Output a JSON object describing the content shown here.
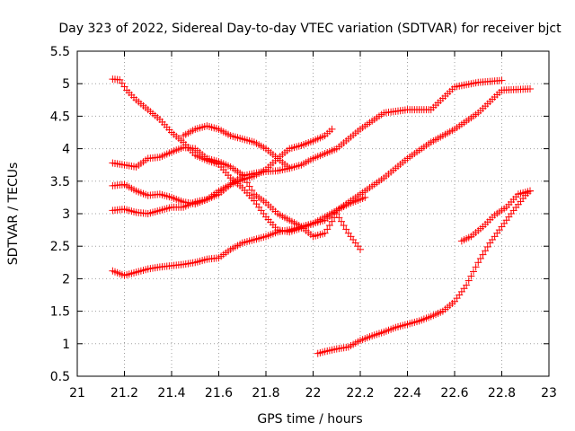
{
  "chart_data": {
    "type": "scatter",
    "title": "Day 323 of 2022, Sidereal Day-to-day VTEC variation (SDTVAR) for receiver bjct",
    "xlabel": "GPS time / hours",
    "ylabel": "SDTVAR / TECUs",
    "xlim": [
      21,
      23
    ],
    "ylim": [
      0.5,
      5.5
    ],
    "xticks": [
      "21",
      "21.2",
      "21.4",
      "21.6",
      "21.8",
      "22",
      "22.2",
      "22.4",
      "22.6",
      "22.8",
      "23"
    ],
    "yticks": [
      "0.5",
      "1",
      "1.5",
      "2",
      "2.5",
      "3",
      "3.5",
      "4",
      "4.5",
      "5",
      "5.5"
    ],
    "grid": true,
    "marker": "+",
    "color": "#ff0000",
    "series": [
      {
        "x": [
          21.15,
          21.18,
          21.21,
          21.25,
          21.3,
          21.35,
          21.4,
          21.45,
          21.5,
          21.55,
          21.6,
          21.65,
          21.7,
          21.75,
          21.8,
          21.85,
          21.9,
          21.95,
          22.0,
          22.05,
          22.1,
          22.15,
          22.2,
          22.22
        ],
        "y": [
          5.07,
          5.06,
          4.9,
          4.75,
          4.6,
          4.45,
          4.25,
          4.1,
          3.9,
          3.82,
          3.76,
          3.55,
          3.4,
          3.2,
          2.95,
          2.75,
          2.72,
          2.78,
          2.85,
          2.9,
          3.05,
          3.15,
          3.22,
          3.25
        ]
      },
      {
        "x": [
          21.15,
          21.2,
          21.25,
          21.3,
          21.35,
          21.4,
          21.45,
          21.5,
          21.55,
          21.6,
          21.65,
          21.7,
          21.75,
          21.8,
          21.85,
          21.9,
          21.95,
          22.0,
          22.05,
          22.1,
          22.15,
          22.2
        ],
        "y": [
          3.78,
          3.75,
          3.72,
          3.85,
          3.87,
          3.95,
          4.02,
          4.0,
          3.85,
          3.8,
          3.72,
          3.6,
          3.3,
          3.17,
          3.0,
          2.9,
          2.8,
          2.65,
          2.7,
          3.0,
          2.7,
          2.45
        ]
      },
      {
        "x": [
          21.15,
          21.2,
          21.25,
          21.3,
          21.35,
          21.4,
          21.45,
          21.5,
          21.55,
          21.6,
          21.65,
          21.7,
          21.75,
          21.8,
          21.85,
          21.9,
          21.95,
          22.0,
          22.05,
          22.08
        ],
        "y": [
          3.43,
          3.45,
          3.35,
          3.28,
          3.3,
          3.25,
          3.18,
          3.15,
          3.22,
          3.35,
          3.45,
          3.52,
          3.58,
          3.68,
          3.85,
          4.0,
          4.05,
          4.12,
          4.2,
          4.3
        ]
      },
      {
        "x": [
          21.15,
          21.2,
          21.25,
          21.3,
          21.35,
          21.4,
          21.45,
          21.5,
          21.55,
          21.6,
          21.65,
          21.7,
          21.75,
          21.8,
          21.85,
          21.9,
          21.95,
          22.0,
          22.1,
          22.2,
          22.3,
          22.4,
          22.5,
          22.6,
          22.7,
          22.8
        ],
        "y": [
          3.05,
          3.07,
          3.02,
          3.0,
          3.05,
          3.1,
          3.1,
          3.18,
          3.22,
          3.3,
          3.45,
          3.58,
          3.62,
          3.65,
          3.66,
          3.7,
          3.75,
          3.85,
          4.0,
          4.3,
          4.55,
          4.6,
          4.6,
          4.95,
          5.02,
          5.05
        ]
      },
      {
        "x": [
          21.15,
          21.2,
          21.25,
          21.3,
          21.35,
          21.4,
          21.45,
          21.5,
          21.55,
          21.6,
          21.65,
          21.7,
          21.75,
          21.8,
          21.85,
          21.9,
          21.95,
          22.0,
          22.05,
          22.1,
          22.2,
          22.3,
          22.4,
          22.5,
          22.6,
          22.7,
          22.8,
          22.92
        ],
        "y": [
          2.12,
          2.05,
          2.1,
          2.15,
          2.18,
          2.2,
          2.22,
          2.25,
          2.3,
          2.32,
          2.45,
          2.55,
          2.6,
          2.65,
          2.72,
          2.75,
          2.8,
          2.85,
          2.95,
          3.05,
          3.3,
          3.55,
          3.85,
          4.1,
          4.3,
          4.55,
          4.9,
          4.92
        ]
      },
      {
        "x": [
          21.45,
          21.5,
          21.55,
          21.6,
          21.65,
          21.7,
          21.75,
          21.8,
          21.85,
          21.9
        ],
        "y": [
          4.2,
          4.3,
          4.35,
          4.3,
          4.2,
          4.15,
          4.1,
          4.0,
          3.85,
          3.7
        ]
      },
      {
        "x": [
          22.02,
          22.05,
          22.1,
          22.15,
          22.2,
          22.25,
          22.3,
          22.35,
          22.4,
          22.45,
          22.5,
          22.55,
          22.6,
          22.65,
          22.7,
          22.75,
          22.8,
          22.85,
          22.9,
          22.92
        ],
        "y": [
          0.85,
          0.88,
          0.92,
          0.95,
          1.05,
          1.12,
          1.18,
          1.25,
          1.3,
          1.35,
          1.42,
          1.5,
          1.65,
          1.9,
          2.25,
          2.55,
          2.8,
          3.05,
          3.28,
          3.35
        ]
      },
      {
        "x": [
          22.63,
          22.67,
          22.72,
          22.77,
          22.82,
          22.87,
          22.92
        ],
        "y": [
          2.58,
          2.65,
          2.8,
          2.98,
          3.1,
          3.3,
          3.35
        ]
      }
    ]
  }
}
